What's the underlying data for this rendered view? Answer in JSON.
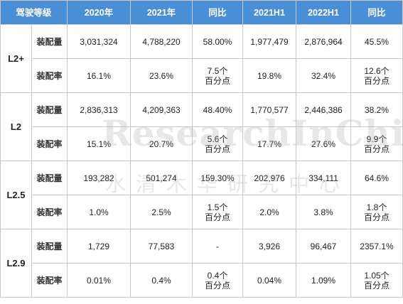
{
  "header": {
    "level": "驾驶等级",
    "y2020": "2020年",
    "y2021": "2021年",
    "yoy1": "同比",
    "h2021": "2021H1",
    "h2022": "2022H1",
    "yoy2": "同比"
  },
  "groups": [
    {
      "level": "L2+",
      "rows": [
        {
          "metric": "装配量",
          "v2020": "3,031,324",
          "v2021": "4,788,220",
          "yoy1": "58.00%",
          "h2021": "1,977,479",
          "h2022": "2,876,964",
          "yoy2": "45.5%"
        },
        {
          "metric": "装配率",
          "v2020": "16.1%",
          "v2021": "23.6%",
          "yoy1": "7.5个\n百分点",
          "h2021": "19.8%",
          "h2022": "32.4%",
          "yoy2": "12.6个\n百分点"
        }
      ]
    },
    {
      "level": "L2",
      "rows": [
        {
          "metric": "装配量",
          "v2020": "2,836,313",
          "v2021": "4,209,363",
          "yoy1": "48.40%",
          "h2021": "1,770,577",
          "h2022": "2,446,386",
          "yoy2": "38.2%"
        },
        {
          "metric": "装配率",
          "v2020": "15.1%",
          "v2021": "20.7%",
          "yoy1": "5.6个\n百分点",
          "h2021": "17.7%",
          "h2022": "27.6%",
          "yoy2": "9.9个\n百分点"
        }
      ]
    },
    {
      "level": "L2.5",
      "rows": [
        {
          "metric": "装配量",
          "v2020": "193,282",
          "v2021": "501,274",
          "yoy1": "159.30%",
          "h2021": "202,976",
          "h2022": "334,111",
          "yoy2": "64.6%"
        },
        {
          "metric": "装配率",
          "v2020": "1.0%",
          "v2021": "2.5%",
          "yoy1": "1.5个\n百分点",
          "h2021": "2.0%",
          "h2022": "3.8%",
          "yoy2": "1.8个\n百分点"
        }
      ]
    },
    {
      "level": "L2.9",
      "rows": [
        {
          "metric": "装配量",
          "v2020": "1,729",
          "v2021": "77,583",
          "yoy1": "-",
          "h2021": "3,926",
          "h2022": "96,467",
          "yoy2": "2357.1%"
        },
        {
          "metric": "装配率",
          "v2020": "0.01%",
          "v2021": "0.4%",
          "yoy1": "0.4个\n百分点",
          "h2021": "0.04%",
          "h2022": "1.09%",
          "yoy2": "1.05个\n百分点"
        }
      ]
    }
  ],
  "watermark": {
    "en": "ResearchInChina",
    "zh": "水清木华研究中心"
  }
}
